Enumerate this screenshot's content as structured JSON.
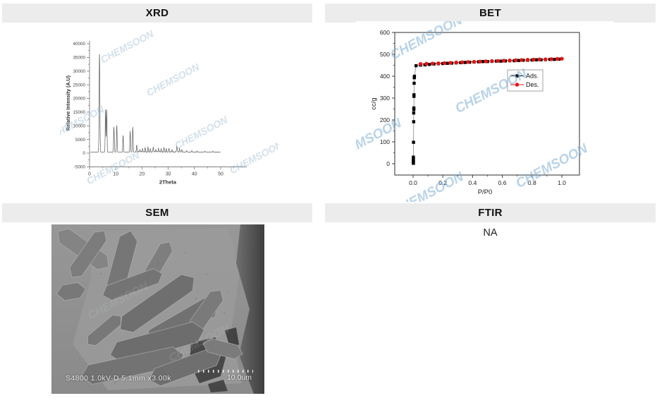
{
  "watermark": {
    "text": "CHEMSOON",
    "color_light": "#a9c3d8",
    "color_strong": "#7fb0d6"
  },
  "panels": {
    "xrd": {
      "title": "XRD"
    },
    "bet": {
      "title": "BET"
    },
    "sem": {
      "title": "SEM",
      "caption": "S4800 1.0kV-D 5.1mm x3.00k",
      "scale_label": "10.0um"
    },
    "ftir": {
      "title": "FTIR",
      "value": "NA"
    }
  },
  "chart_data": [
    {
      "type": "line",
      "title": "XRD",
      "xlabel": "2Theta",
      "ylabel": "Relative Intensity (A.U)",
      "xlim": [
        0,
        60
      ],
      "ylim": [
        -5000,
        40000
      ],
      "xticks": [
        0,
        10,
        20,
        30,
        40,
        50
      ],
      "yticks": [
        -5000,
        0,
        5000,
        10000,
        15000,
        20000,
        25000,
        30000,
        35000,
        40000
      ],
      "grid": false,
      "baseline_intensity": 330,
      "line_color": "#5c5c5c",
      "peaks": [
        [
          3.8,
          36200,
          0.14
        ],
        [
          6.1,
          15800,
          0.12
        ],
        [
          6.55,
          15600,
          0.12
        ],
        [
          9.3,
          9300,
          0.12
        ],
        [
          10.4,
          9900,
          0.12
        ],
        [
          12.8,
          6200,
          0.12
        ],
        [
          15.5,
          7800,
          0.12
        ],
        [
          16.5,
          9200,
          0.12
        ],
        [
          18.0,
          2400,
          0.12
        ],
        [
          19.2,
          1000,
          0.1
        ],
        [
          20.2,
          1300,
          0.1
        ],
        [
          21.2,
          1500,
          0.1
        ],
        [
          22.3,
          1700,
          0.1
        ],
        [
          23.2,
          1100,
          0.1
        ],
        [
          24.3,
          1900,
          0.1
        ],
        [
          25.3,
          1100,
          0.1
        ],
        [
          26.3,
          1400,
          0.1
        ],
        [
          27.3,
          1100,
          0.1
        ],
        [
          28.4,
          1500,
          0.1
        ],
        [
          29.3,
          1100,
          0.1
        ],
        [
          30.3,
          1300,
          0.1
        ],
        [
          31.5,
          900,
          0.1
        ],
        [
          33.3,
          2300,
          0.12
        ],
        [
          34.3,
          1400,
          0.1
        ],
        [
          35.2,
          900,
          0.1
        ],
        [
          37.0,
          600,
          0.12
        ],
        [
          39.0,
          500,
          0.12
        ],
        [
          41.0,
          420,
          0.12
        ],
        [
          44.0,
          380,
          0.12
        ],
        [
          47.0,
          320,
          0.12
        ]
      ]
    },
    {
      "type": "scatter",
      "title": "BET",
      "xlabel": "P/P0",
      "ylabel": "cc/g",
      "xlim": [
        -0.12,
        1.12
      ],
      "ylim": [
        -52,
        620
      ],
      "xticks": [
        0.0,
        0.2,
        0.4,
        0.6,
        0.8,
        1.0
      ],
      "yticks": [
        0,
        100,
        200,
        300,
        400,
        500,
        600
      ],
      "grid": false,
      "legend_position": "upper-middle-right",
      "legend": [
        {
          "label": "Ads.",
          "marker": "square",
          "color": "#000000"
        },
        {
          "label": "Des.",
          "marker": "circle",
          "color": "#e41414"
        }
      ],
      "series": [
        {
          "name": "Ads.",
          "marker": "square",
          "color": "#000000",
          "points": [
            [
              0.002,
              2
            ],
            [
              0.002,
              8
            ],
            [
              0.002,
              15
            ],
            [
              0.002,
              22
            ],
            [
              0.002,
              30
            ],
            [
              0.003,
              98
            ],
            [
              0.004,
              192
            ],
            [
              0.004,
              232
            ],
            [
              0.005,
              248
            ],
            [
              0.005,
              255
            ],
            [
              0.006,
              308
            ],
            [
              0.006,
              315
            ],
            [
              0.007,
              368
            ],
            [
              0.008,
              393
            ],
            [
              0.009,
              400
            ],
            [
              0.02,
              448
            ],
            [
              0.05,
              451
            ],
            [
              0.08,
              452
            ],
            [
              0.11,
              454
            ],
            [
              0.14,
              456
            ],
            [
              0.17,
              457
            ],
            [
              0.2,
              458
            ],
            [
              0.23,
              459
            ],
            [
              0.26,
              460
            ],
            [
              0.29,
              461
            ],
            [
              0.32,
              462
            ],
            [
              0.35,
              463
            ],
            [
              0.38,
              464
            ],
            [
              0.41,
              465
            ],
            [
              0.44,
              466
            ],
            [
              0.47,
              467
            ],
            [
              0.5,
              467
            ],
            [
              0.53,
              468
            ],
            [
              0.56,
              469
            ],
            [
              0.59,
              469
            ],
            [
              0.62,
              470
            ],
            [
              0.65,
              471
            ],
            [
              0.68,
              471
            ],
            [
              0.71,
              472
            ],
            [
              0.74,
              473
            ],
            [
              0.77,
              473
            ],
            [
              0.8,
              474
            ],
            [
              0.83,
              475
            ],
            [
              0.86,
              475
            ],
            [
              0.89,
              476
            ],
            [
              0.92,
              477
            ],
            [
              0.95,
              477
            ],
            [
              0.98,
              478
            ]
          ]
        },
        {
          "name": "Des.",
          "marker": "circle",
          "color": "#e41414",
          "points": [
            [
              0.05,
              456
            ],
            [
              0.09,
              457
            ],
            [
              0.13,
              458
            ],
            [
              0.17,
              459
            ],
            [
              0.21,
              460
            ],
            [
              0.25,
              461
            ],
            [
              0.29,
              463
            ],
            [
              0.33,
              464
            ],
            [
              0.37,
              465
            ],
            [
              0.41,
              466
            ],
            [
              0.45,
              467
            ],
            [
              0.49,
              468
            ],
            [
              0.53,
              469
            ],
            [
              0.57,
              470
            ],
            [
              0.61,
              471
            ],
            [
              0.65,
              472
            ],
            [
              0.69,
              473
            ],
            [
              0.73,
              474
            ],
            [
              0.77,
              475
            ],
            [
              0.81,
              476
            ],
            [
              0.85,
              477
            ],
            [
              0.89,
              477
            ],
            [
              0.93,
              478
            ],
            [
              0.97,
              479
            ],
            [
              1.0,
              480
            ]
          ]
        }
      ]
    }
  ]
}
